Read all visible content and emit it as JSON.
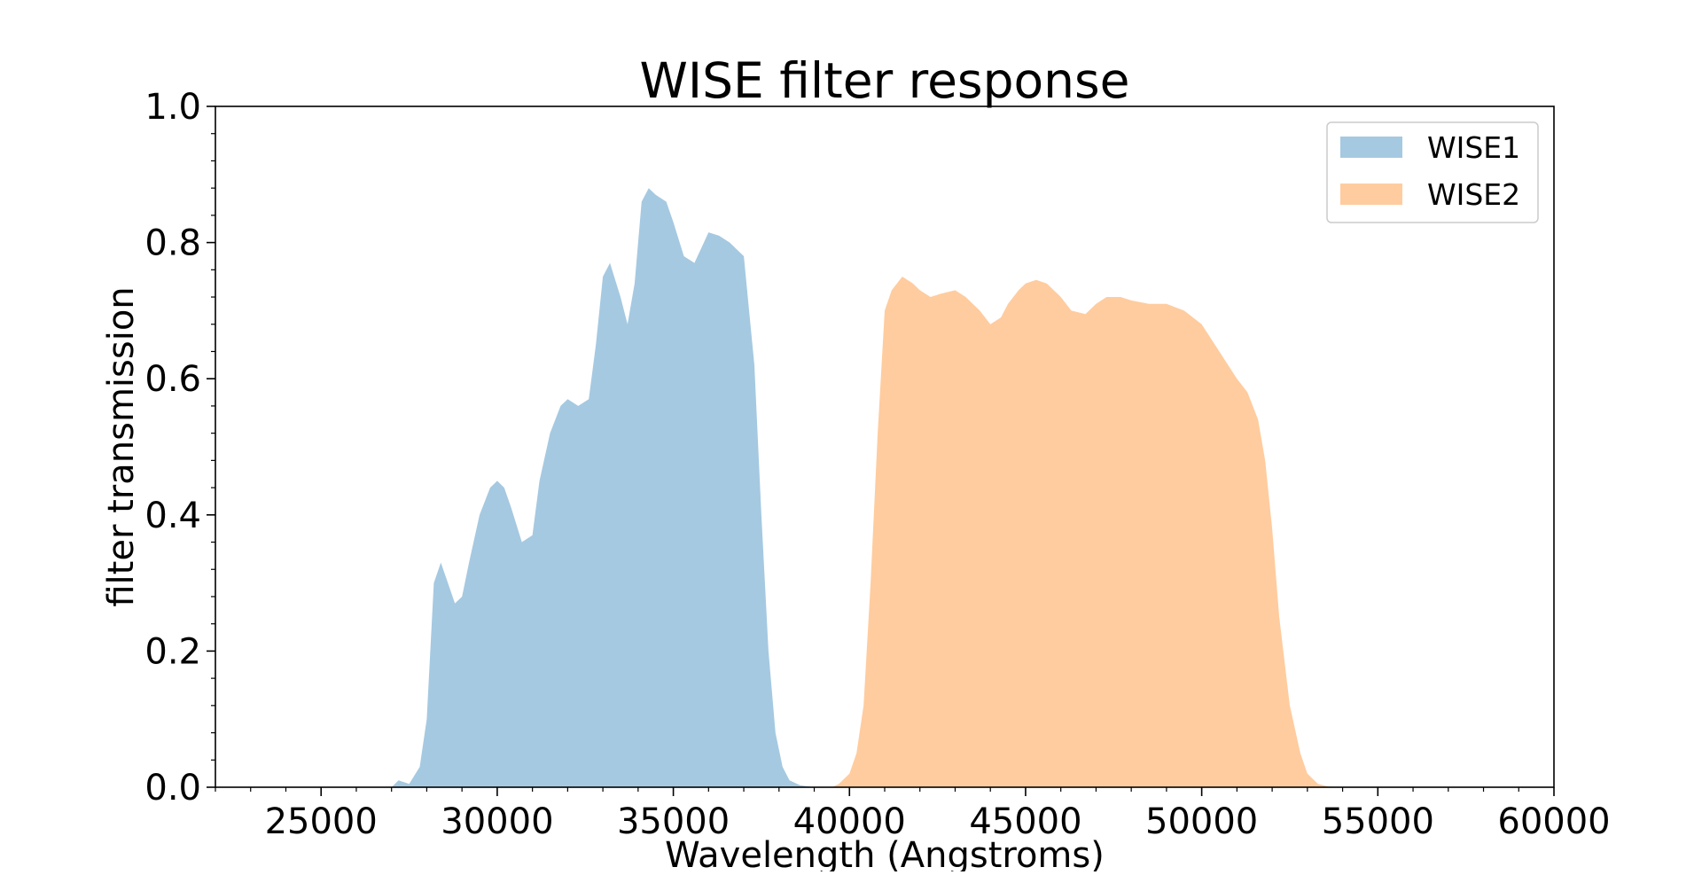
{
  "chart_data": {
    "type": "area",
    "title": "WISE filter response",
    "xlabel": "Wavelength (Angstroms)",
    "ylabel": "filter transmission",
    "xlim": [
      22000,
      60000
    ],
    "ylim": [
      0,
      1.0
    ],
    "xticks": [
      25000,
      30000,
      35000,
      40000,
      45000,
      50000,
      55000,
      60000
    ],
    "xtick_labels": [
      "25000",
      "30000",
      "35000",
      "40000",
      "45000",
      "50000",
      "55000",
      "60000"
    ],
    "yticks": [
      0.0,
      0.2,
      0.4,
      0.6,
      0.8,
      1.0
    ],
    "ytick_labels": [
      "0.0",
      "0.2",
      "0.4",
      "0.6",
      "0.8",
      "1.0"
    ],
    "grid": false,
    "legend_position": "top-right",
    "series": [
      {
        "name": "WISE1",
        "color": "#1f77b4",
        "opacity": 0.4,
        "x": [
          27000,
          27200,
          27500,
          27800,
          28000,
          28200,
          28400,
          28600,
          28800,
          29000,
          29200,
          29500,
          29800,
          30000,
          30200,
          30400,
          30700,
          31000,
          31200,
          31500,
          31800,
          32000,
          32300,
          32600,
          32800,
          33000,
          33200,
          33500,
          33700,
          33900,
          34100,
          34300,
          34500,
          34800,
          35000,
          35300,
          35600,
          36000,
          36300,
          36600,
          37000,
          37300,
          37500,
          37700,
          37900,
          38100,
          38300,
          38600,
          39000,
          39300,
          39500
        ],
        "y": [
          0.0,
          0.01,
          0.005,
          0.03,
          0.1,
          0.3,
          0.33,
          0.3,
          0.27,
          0.28,
          0.33,
          0.4,
          0.44,
          0.45,
          0.44,
          0.41,
          0.36,
          0.37,
          0.45,
          0.52,
          0.56,
          0.57,
          0.56,
          0.57,
          0.65,
          0.75,
          0.77,
          0.72,
          0.68,
          0.74,
          0.86,
          0.88,
          0.87,
          0.86,
          0.83,
          0.78,
          0.77,
          0.815,
          0.81,
          0.8,
          0.78,
          0.62,
          0.4,
          0.2,
          0.08,
          0.03,
          0.01,
          0.003,
          0.0,
          0.0,
          0.0
        ]
      },
      {
        "name": "WISE2",
        "color": "#ff7f0e",
        "opacity": 0.4,
        "x": [
          39500,
          39700,
          40000,
          40200,
          40400,
          40600,
          40800,
          41000,
          41200,
          41500,
          41800,
          42000,
          42300,
          42600,
          43000,
          43300,
          43700,
          44000,
          44300,
          44500,
          44800,
          45000,
          45300,
          45600,
          46000,
          46300,
          46700,
          47000,
          47300,
          47700,
          48000,
          48500,
          49000,
          49500,
          50000,
          50500,
          51000,
          51300,
          51600,
          51800,
          52000,
          52200,
          52500,
          52800,
          53000,
          53300,
          53600,
          54000
        ],
        "y": [
          0.0,
          0.005,
          0.02,
          0.05,
          0.12,
          0.3,
          0.52,
          0.7,
          0.73,
          0.75,
          0.74,
          0.73,
          0.72,
          0.725,
          0.73,
          0.72,
          0.7,
          0.68,
          0.69,
          0.71,
          0.73,
          0.74,
          0.745,
          0.74,
          0.72,
          0.7,
          0.695,
          0.71,
          0.72,
          0.72,
          0.715,
          0.71,
          0.71,
          0.7,
          0.68,
          0.64,
          0.6,
          0.58,
          0.54,
          0.48,
          0.38,
          0.25,
          0.12,
          0.05,
          0.02,
          0.005,
          0.001,
          0.0
        ]
      }
    ]
  }
}
